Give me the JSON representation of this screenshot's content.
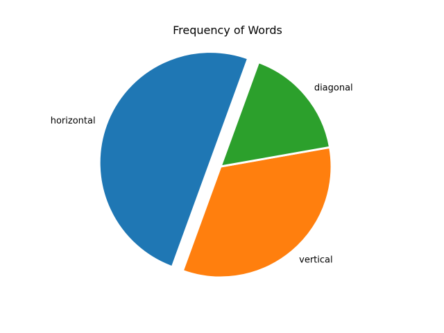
{
  "chart_data": {
    "type": "pie",
    "title": "Frequency of Words",
    "start_angle_deg": 70,
    "direction": "counterclockwise",
    "slices": [
      {
        "label": "horizontal",
        "value": 3,
        "color": "#1f77b4",
        "explode": 0.1
      },
      {
        "label": "vertical",
        "value": 2,
        "color": "#ff7f0e",
        "explode": 0
      },
      {
        "label": "diagonal",
        "value": 1,
        "color": "#2ca02c",
        "explode": 0
      }
    ]
  }
}
